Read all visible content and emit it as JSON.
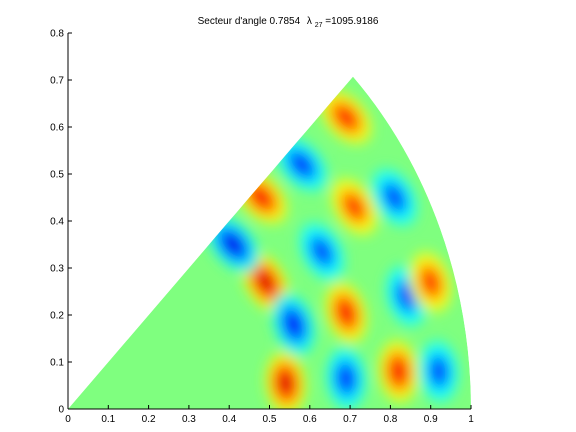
{
  "chart_data": {
    "type": "heatmap",
    "title": {
      "prefix": "Secteur d'angle 0.7854",
      "lambda_symbol": "λ",
      "lambda_subscript": "27",
      "lambda_value": "=1095.9186"
    },
    "xlabel": "",
    "ylabel": "",
    "xlim": [
      0,
      1
    ],
    "ylim": [
      0,
      0.8
    ],
    "x_ticks": [
      "0",
      "0.1",
      "0.2",
      "0.3",
      "0.4",
      "0.5",
      "0.6",
      "0.7",
      "0.8",
      "0.9",
      "1"
    ],
    "y_ticks": [
      "0",
      "0.1",
      "0.2",
      "0.3",
      "0.4",
      "0.5",
      "0.6",
      "0.7",
      "0.8"
    ],
    "grid": false,
    "domain": {
      "shape": "circular-sector",
      "radius": 1,
      "angle": 0.7854
    },
    "colormap": "jet",
    "field_lobes": [
      {
        "x": 0.54,
        "y": 0.055,
        "amplitude": 1.0
      },
      {
        "x": 0.49,
        "y": 0.27,
        "amplitude": 1.0
      },
      {
        "x": 0.56,
        "y": 0.18,
        "amplitude": -0.9
      },
      {
        "x": 0.41,
        "y": 0.35,
        "amplitude": -0.95
      },
      {
        "x": 0.48,
        "y": 0.45,
        "amplitude": 0.9
      },
      {
        "x": 0.58,
        "y": 0.52,
        "amplitude": -0.8
      },
      {
        "x": 0.69,
        "y": 0.62,
        "amplitude": 0.85
      },
      {
        "x": 0.69,
        "y": 0.065,
        "amplitude": -0.8
      },
      {
        "x": 0.69,
        "y": 0.205,
        "amplitude": 0.9
      },
      {
        "x": 0.63,
        "y": 0.335,
        "amplitude": -0.75
      },
      {
        "x": 0.71,
        "y": 0.43,
        "amplitude": 0.8
      },
      {
        "x": 0.81,
        "y": 0.45,
        "amplitude": -0.75
      },
      {
        "x": 0.82,
        "y": 0.08,
        "amplitude": 0.9
      },
      {
        "x": 0.84,
        "y": 0.24,
        "amplitude": -0.75
      },
      {
        "x": 0.92,
        "y": 0.08,
        "amplitude": -0.75
      },
      {
        "x": 0.9,
        "y": 0.27,
        "amplitude": 0.8
      }
    ]
  }
}
